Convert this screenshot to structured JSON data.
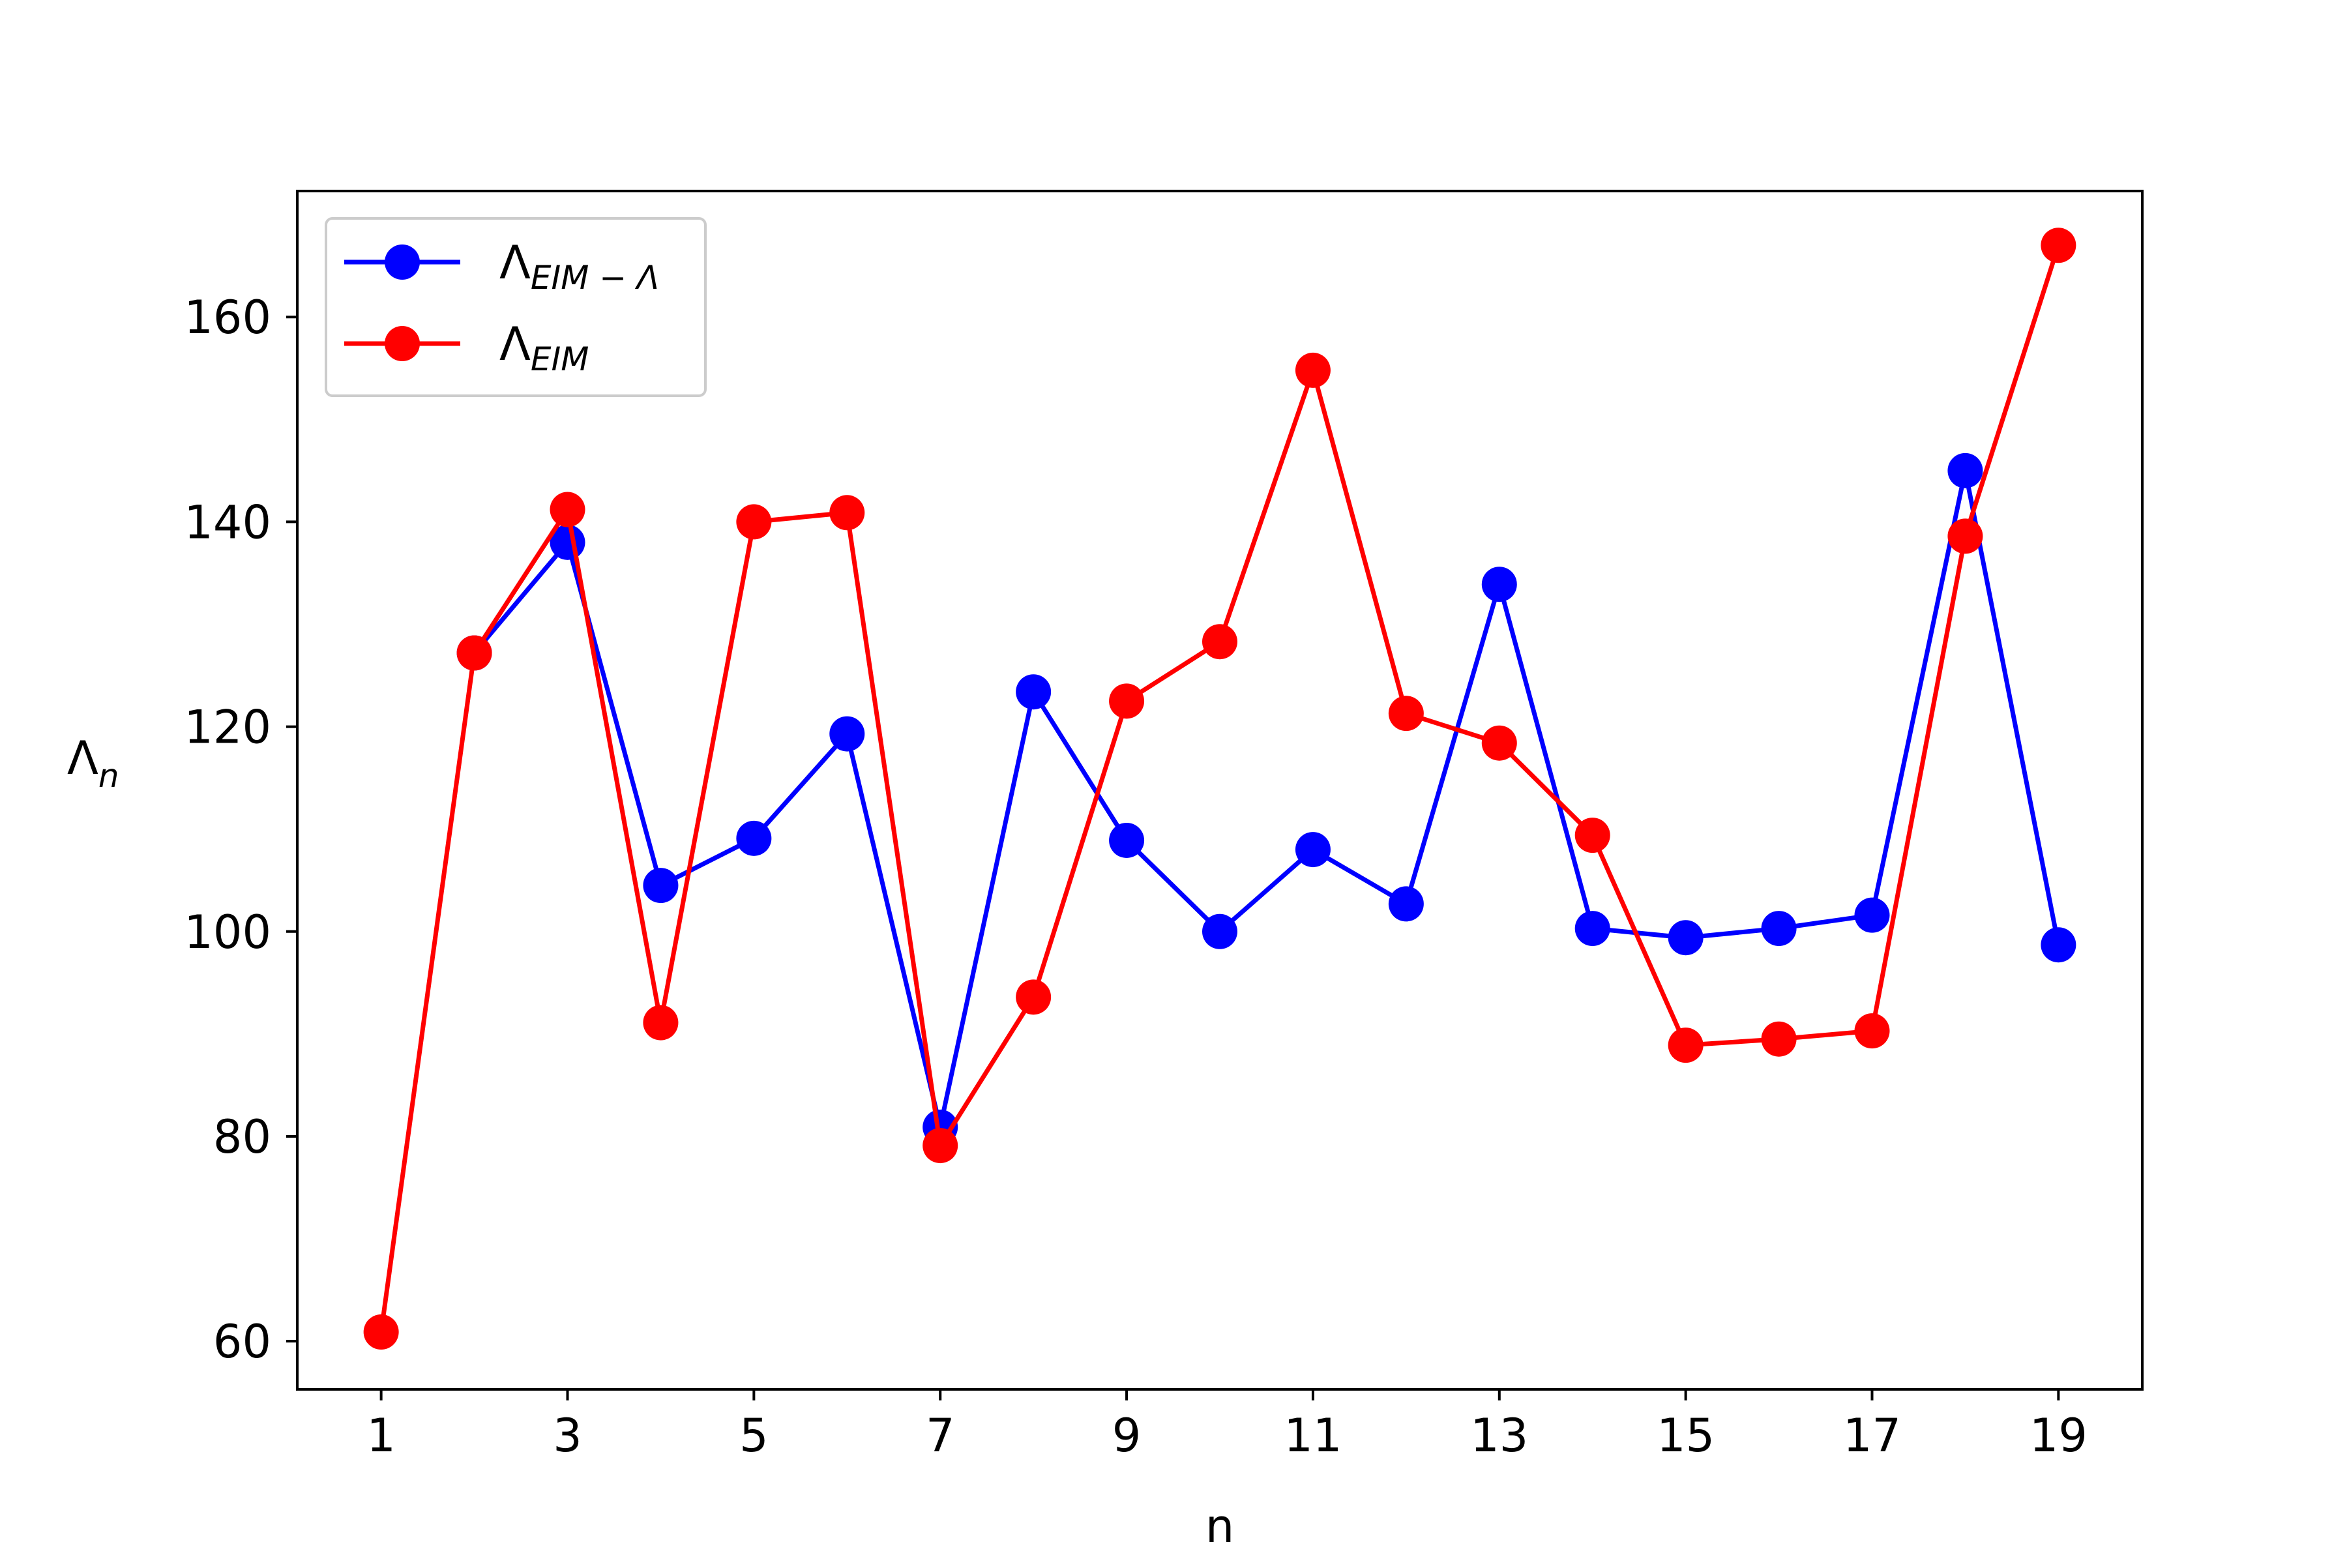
{
  "chart_data": {
    "type": "line",
    "title": "",
    "xlabel": "n",
    "ylabel": "Λ",
    "ylabel_subscript": "n",
    "x": [
      1,
      2,
      3,
      4,
      5,
      6,
      7,
      8,
      9,
      10,
      11,
      12,
      13,
      14,
      15,
      16,
      17,
      18,
      19
    ],
    "xlim": [
      0.1,
      19.9
    ],
    "ylim": [
      55.3,
      172.3
    ],
    "xticks": [
      1,
      3,
      5,
      7,
      9,
      11,
      13,
      15,
      17,
      19
    ],
    "yticks": [
      60,
      80,
      100,
      120,
      140,
      160
    ],
    "grid": false,
    "legend_position": "upper-left",
    "series": [
      {
        "name": "Λ",
        "name_subscript": "EIM − Λ",
        "color": "#0000ff",
        "marker": "circle",
        "start_index": 1,
        "values": [
          null,
          127.2,
          138.0,
          104.5,
          109.1,
          119.3,
          80.9,
          123.4,
          108.9,
          100.0,
          108.0,
          102.7,
          133.9,
          100.3,
          99.4,
          100.3,
          101.6,
          145.0,
          98.7
        ]
      },
      {
        "name": "Λ",
        "name_subscript": "EIM",
        "color": "#ff0000",
        "marker": "circle",
        "start_index": 0,
        "values": [
          60.9,
          127.2,
          141.2,
          91.1,
          140.0,
          140.9,
          79.1,
          93.6,
          122.5,
          128.3,
          154.8,
          121.3,
          118.4,
          109.4,
          88.9,
          89.5,
          90.3,
          138.6,
          167.0
        ]
      }
    ]
  }
}
